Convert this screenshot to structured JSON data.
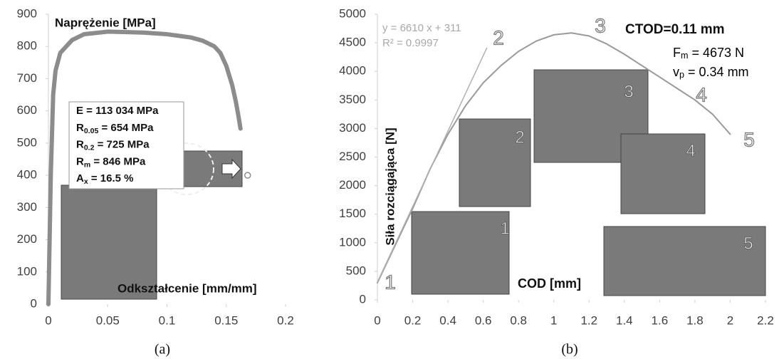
{
  "chart_data": [
    {
      "type": "line",
      "caption": "(a)",
      "xlim": [
        0,
        0.2
      ],
      "ylim": [
        0,
        900
      ],
      "xticks": [
        0,
        0.05,
        0.1,
        0.15,
        0.2
      ],
      "yticks": [
        0,
        100,
        200,
        300,
        400,
        500,
        600,
        700,
        800,
        900
      ],
      "y_label": "Naprężenie [MPa]",
      "x_label": "Odkształcenie [mm/mm]",
      "series": [
        {
          "color": "#8c8c8c",
          "marker": "none",
          "x": [
            0,
            0.002,
            0.004,
            0.006,
            0.01,
            0.02,
            0.03,
            0.05,
            0.08,
            0.1,
            0.12,
            0.13,
            0.14,
            0.145,
            0.15,
            0.155,
            0.158,
            0.16,
            0.162
          ],
          "values": [
            0,
            400,
            650,
            725,
            780,
            820,
            838,
            846,
            843,
            838,
            828,
            818,
            800,
            780,
            740,
            680,
            630,
            590,
            545
          ]
        },
        {
          "color": "#8c8c8c",
          "marker": "circle",
          "x": [
            0.168
          ],
          "values": [
            400
          ]
        }
      ],
      "textbox": [
        {
          "main": "E = 113 034 MPa"
        },
        {
          "main": "R",
          "sub": "0.05",
          "rest": " = 654 MPa"
        },
        {
          "main": "R",
          "sub": "0.2",
          "rest": " = 725 MPa"
        },
        {
          "main": "R",
          "sub": "m",
          "rest": " = 846 MPa"
        },
        {
          "main": "A",
          "sub": "x",
          "rest": " = 16.5 %"
        }
      ]
    },
    {
      "type": "line",
      "caption": "(b)",
      "xlim": [
        0,
        2.2
      ],
      "ylim": [
        0,
        5000
      ],
      "xticks": [
        0,
        0.2,
        0.4,
        0.6,
        0.8,
        1,
        1.2,
        1.4,
        1.6,
        1.8,
        2,
        2.2
      ],
      "yticks": [
        0,
        500,
        1000,
        1500,
        2000,
        2500,
        3000,
        3500,
        4000,
        4500,
        5000
      ],
      "y_label": "Siła rozciągająca [N]",
      "x_label": "COD [mm]",
      "series": [
        {
          "color": "#9a9a9a",
          "marker": "none",
          "x": [
            0,
            0.1,
            0.2,
            0.3,
            0.4,
            0.5,
            0.6,
            0.7,
            0.8,
            0.9,
            1,
            1.1,
            1.2,
            1.3,
            1.4,
            1.5,
            1.6,
            1.7,
            1.8,
            1.9,
            2
          ],
          "values": [
            300,
            950,
            1600,
            2300,
            2900,
            3400,
            3800,
            4100,
            4350,
            4530,
            4640,
            4673,
            4620,
            4480,
            4300,
            4100,
            3900,
            3700,
            3500,
            3250,
            2900
          ]
        },
        {
          "color": "#b0b0b0",
          "marker": "none",
          "x": [
            0,
            0.62
          ],
          "values": [
            311,
            4409
          ]
        }
      ],
      "fit_equation": "y = 6610 x + 311",
      "fit_r2": "R² = 0.9997",
      "ctod": "CTOD=0.11 mm",
      "textbox": [
        {
          "main": "F",
          "sub": "m",
          "rest": " = 4673 N"
        },
        {
          "main": "v",
          "sub": "p",
          "rest": " = 0.34 mm"
        }
      ],
      "point_labels": [
        "1",
        "2",
        "3",
        "4",
        "5"
      ],
      "photo_labels": [
        "1",
        "2",
        "3",
        "4",
        "5"
      ]
    }
  ]
}
